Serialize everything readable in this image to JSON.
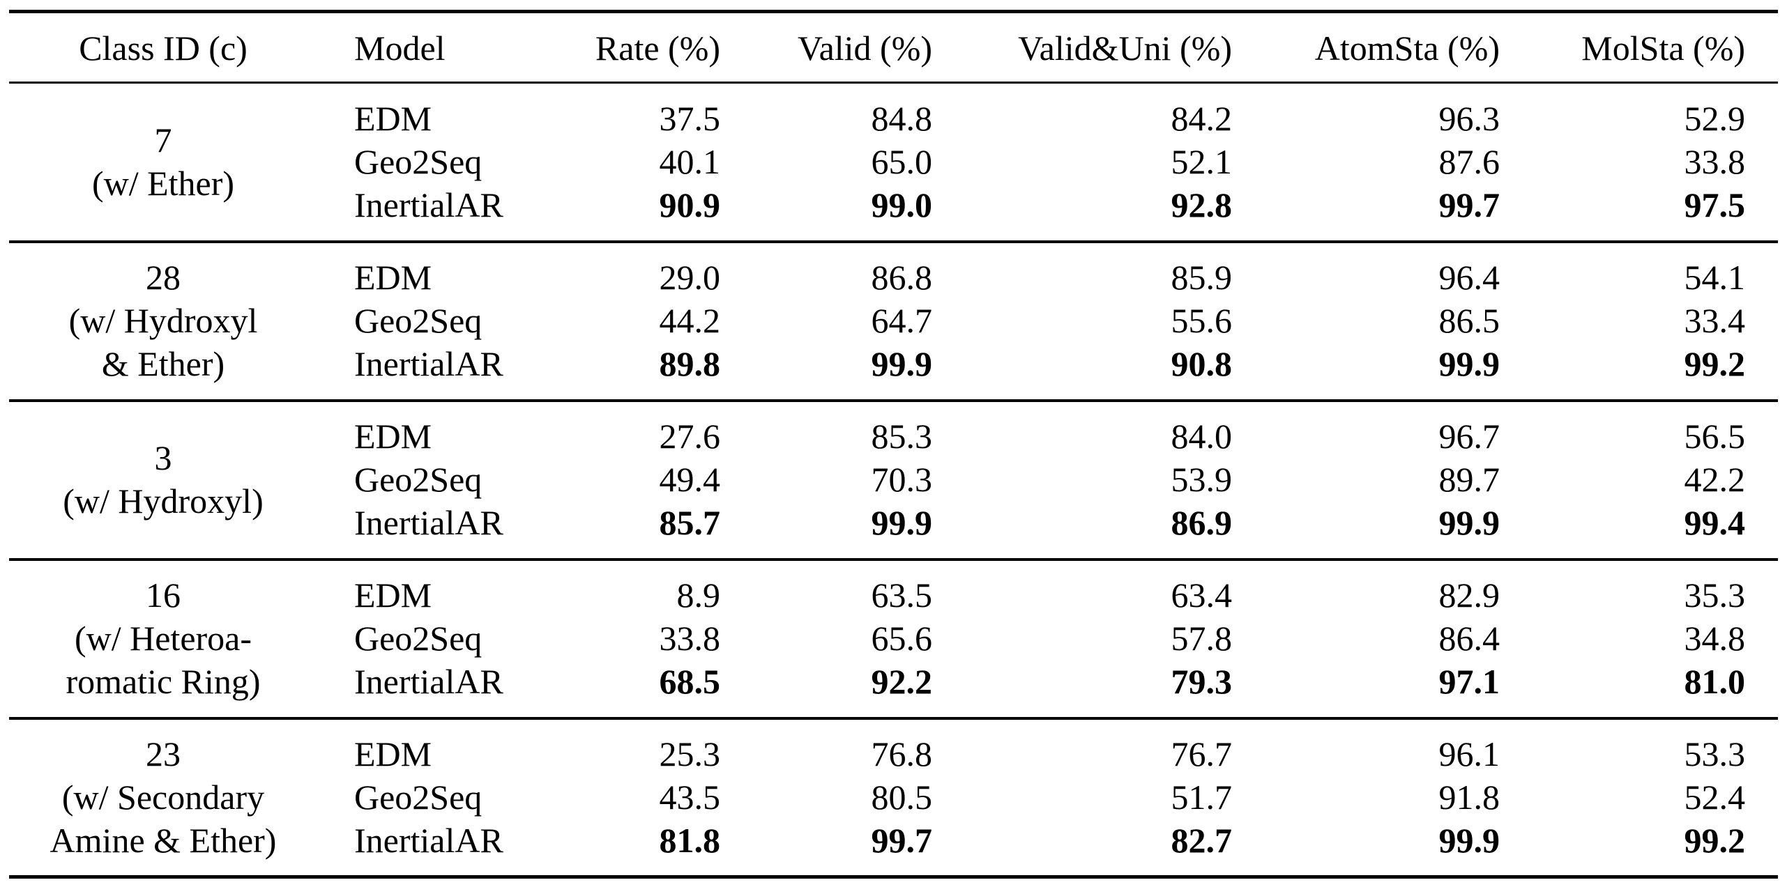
{
  "table": {
    "header": [
      "Class ID (c)",
      "Model",
      "Rate (%)",
      "Valid (%)",
      "Valid&Uni (%)",
      "AtomSta (%)",
      "MolSta (%)"
    ],
    "groups": [
      {
        "class_lines": [
          "7",
          "(w/ Ether)"
        ],
        "rows": [
          {
            "model": "EDM",
            "values": [
              "37.5",
              "84.8",
              "84.2",
              "96.3",
              "52.9"
            ],
            "bold": false
          },
          {
            "model": "Geo2Seq",
            "values": [
              "40.1",
              "65.0",
              "52.1",
              "87.6",
              "33.8"
            ],
            "bold": false
          },
          {
            "model": "InertialAR",
            "values": [
              "90.9",
              "99.0",
              "92.8",
              "99.7",
              "97.5"
            ],
            "bold": true
          }
        ]
      },
      {
        "class_lines": [
          "28",
          "(w/ Hydroxyl",
          "& Ether)"
        ],
        "rows": [
          {
            "model": "EDM",
            "values": [
              "29.0",
              "86.8",
              "85.9",
              "96.4",
              "54.1"
            ],
            "bold": false
          },
          {
            "model": "Geo2Seq",
            "values": [
              "44.2",
              "64.7",
              "55.6",
              "86.5",
              "33.4"
            ],
            "bold": false
          },
          {
            "model": "InertialAR",
            "values": [
              "89.8",
              "99.9",
              "90.8",
              "99.9",
              "99.2"
            ],
            "bold": true
          }
        ]
      },
      {
        "class_lines": [
          "3",
          "(w/ Hydroxyl)"
        ],
        "rows": [
          {
            "model": "EDM",
            "values": [
              "27.6",
              "85.3",
              "84.0",
              "96.7",
              "56.5"
            ],
            "bold": false
          },
          {
            "model": "Geo2Seq",
            "values": [
              "49.4",
              "70.3",
              "53.9",
              "89.7",
              "42.2"
            ],
            "bold": false
          },
          {
            "model": "InertialAR",
            "values": [
              "85.7",
              "99.9",
              "86.9",
              "99.9",
              "99.4"
            ],
            "bold": true
          }
        ]
      },
      {
        "class_lines": [
          "16",
          "(w/ Heteroa-",
          "romatic Ring)"
        ],
        "rows": [
          {
            "model": "EDM",
            "values": [
              "8.9",
              "63.5",
              "63.4",
              "82.9",
              "35.3"
            ],
            "bold": false
          },
          {
            "model": "Geo2Seq",
            "values": [
              "33.8",
              "65.6",
              "57.8",
              "86.4",
              "34.8"
            ],
            "bold": false
          },
          {
            "model": "InertialAR",
            "values": [
              "68.5",
              "92.2",
              "79.3",
              "97.1",
              "81.0"
            ],
            "bold": true
          }
        ]
      },
      {
        "class_lines": [
          "23",
          "(w/ Secondary",
          "Amine & Ether)"
        ],
        "rows": [
          {
            "model": "EDM",
            "values": [
              "25.3",
              "76.8",
              "76.7",
              "96.1",
              "53.3"
            ],
            "bold": false
          },
          {
            "model": "Geo2Seq",
            "values": [
              "43.5",
              "80.5",
              "51.7",
              "91.8",
              "52.4"
            ],
            "bold": false
          },
          {
            "model": "InertialAR",
            "values": [
              "81.8",
              "99.7",
              "82.7",
              "99.9",
              "99.2"
            ],
            "bold": true
          }
        ]
      }
    ]
  }
}
